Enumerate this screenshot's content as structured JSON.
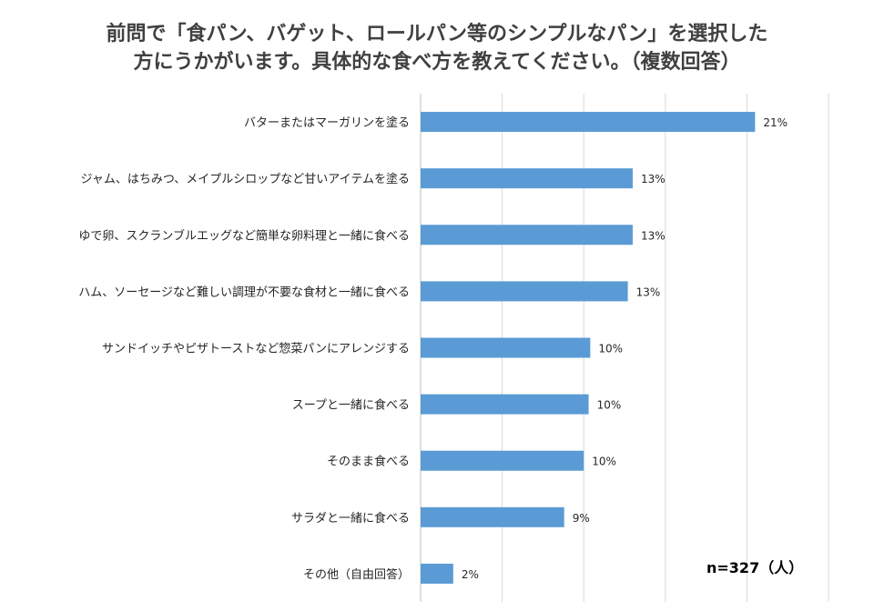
{
  "chart_data": {
    "type": "bar",
    "orientation": "horizontal",
    "title_lines": [
      "前問で「食パン、バゲット、ロールパン等のシンプルなパン」を選択した",
      "方にうかがいます。具体的な食べ方を教えてください。（複数回答）"
    ],
    "categories": [
      "バターまたはマーガリンを塗る",
      "ジャム、はちみつ、メイプルシロップなど甘いアイテムを塗る",
      "ゆで卵、スクランブルエッグなど簡単な卵料理と一緒に食べる",
      "ハム、ソーセージなど難しい調理が不要な食材と一緒に食べる",
      "サンドイッチやピザトーストなど惣菜パンにアレンジする",
      "スープと一緒に食べる",
      "そのまま食べる",
      "サラダと一緒に食べる",
      "その他（自由回答）"
    ],
    "values": [
      20.5,
      13.0,
      13.0,
      12.7,
      10.4,
      10.3,
      10.0,
      8.8,
      2.0
    ],
    "value_labels": [
      "21%",
      "13%",
      "13%",
      "13%",
      "10%",
      "10%",
      "10%",
      "9%",
      "2%"
    ],
    "xlim": [
      0,
      25
    ],
    "grid": true,
    "bar_color": "#5b9bd5",
    "note": "n=327（人）"
  }
}
